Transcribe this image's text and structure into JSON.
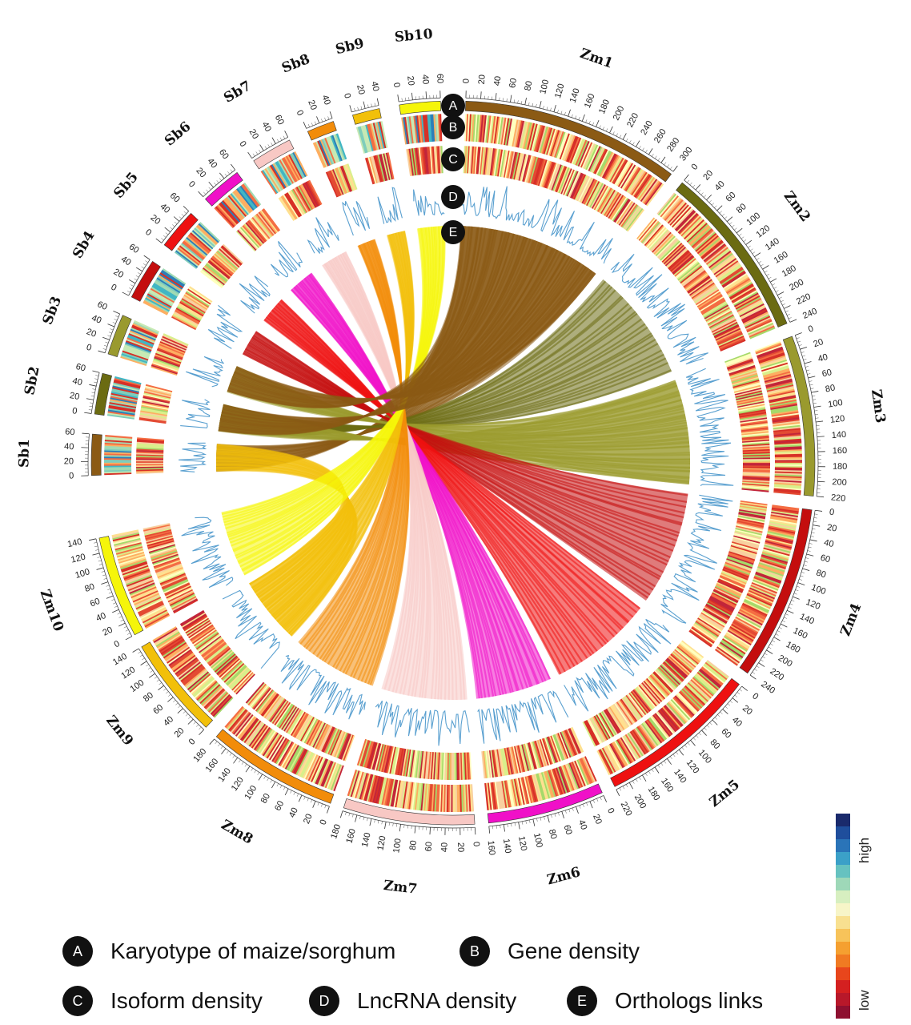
{
  "track_badges": [
    "A",
    "B",
    "C",
    "D",
    "E"
  ],
  "chromosomes": [
    {
      "name": "Zm1",
      "max": 300,
      "step": 20,
      "color": "#8B5A14"
    },
    {
      "name": "Zm2",
      "max": 240,
      "step": 20,
      "color": "#6B6B12"
    },
    {
      "name": "Zm3",
      "max": 220,
      "step": 20,
      "color": "#9A9A2E"
    },
    {
      "name": "Zm4",
      "max": 240,
      "step": 20,
      "color": "#C40E0E"
    },
    {
      "name": "Zm5",
      "max": 220,
      "step": 20,
      "color": "#EE1111"
    },
    {
      "name": "Zm6",
      "max": 160,
      "step": 20,
      "color": "#F010C8"
    },
    {
      "name": "Zm7",
      "max": 180,
      "step": 20,
      "color": "#F8C8C4"
    },
    {
      "name": "Zm8",
      "max": 180,
      "step": 20,
      "color": "#F28C0A"
    },
    {
      "name": "Zm9",
      "max": 140,
      "step": 20,
      "color": "#F2C00A"
    },
    {
      "name": "Zm10",
      "max": 140,
      "step": 20,
      "color": "#F5F50A"
    },
    {
      "name": "Sb1",
      "max": 60,
      "step": 20,
      "color": "#8B5A14"
    },
    {
      "name": "Sb2",
      "max": 60,
      "step": 20,
      "color": "#6B6B12"
    },
    {
      "name": "Sb3",
      "max": 60,
      "step": 20,
      "color": "#9A9A2E"
    },
    {
      "name": "Sb4",
      "max": 60,
      "step": 20,
      "color": "#C40E0E"
    },
    {
      "name": "Sb5",
      "max": 60,
      "step": 20,
      "color": "#EE1111"
    },
    {
      "name": "Sb6",
      "max": 60,
      "step": 20,
      "color": "#F010C8"
    },
    {
      "name": "Sb7",
      "max": 60,
      "step": 20,
      "color": "#F8C8C4"
    },
    {
      "name": "Sb8",
      "max": 40,
      "step": 20,
      "color": "#F28C0A"
    },
    {
      "name": "Sb9",
      "max": 40,
      "step": 20,
      "color": "#F2C00A"
    },
    {
      "name": "Sb10",
      "max": 60,
      "step": 20,
      "color": "#F5F50A"
    }
  ],
  "legend": [
    {
      "badge": "A",
      "label": "Karyotype of maize/sorghum"
    },
    {
      "badge": "B",
      "label": "Gene density"
    },
    {
      "badge": "C",
      "label": "Isoform density"
    },
    {
      "badge": "D",
      "label": "LncRNA density"
    },
    {
      "badge": "E",
      "label": "Orthologs links"
    }
  ],
  "colorbar": {
    "high_label": "high",
    "low_label": "low",
    "colors": [
      "#1A2A6C",
      "#1F4E9C",
      "#2A74B8",
      "#3BA0C8",
      "#66C2C0",
      "#9ED8B8",
      "#D7EFC0",
      "#F7F5C8",
      "#F8E090",
      "#F7C35A",
      "#F5A030",
      "#F07A22",
      "#E8461C",
      "#D42020",
      "#B8182A",
      "#8E1030"
    ]
  },
  "density_palette": [
    "#D73027",
    "#F46D43",
    "#FDAE61",
    "#FEE090",
    "#FFFFBF",
    "#D9EF8B",
    "#A6D96A",
    "#F8D0A0",
    "#E34A33",
    "#C2253A"
  ],
  "sb_density_palette": [
    "#2C7FB8",
    "#41B6C4",
    "#7FCDBB",
    "#C7E9B4",
    "#D73027",
    "#F46D43",
    "#FDAE61",
    "#A1DAB4"
  ],
  "lncrna_color": "#5AA0D0"
}
